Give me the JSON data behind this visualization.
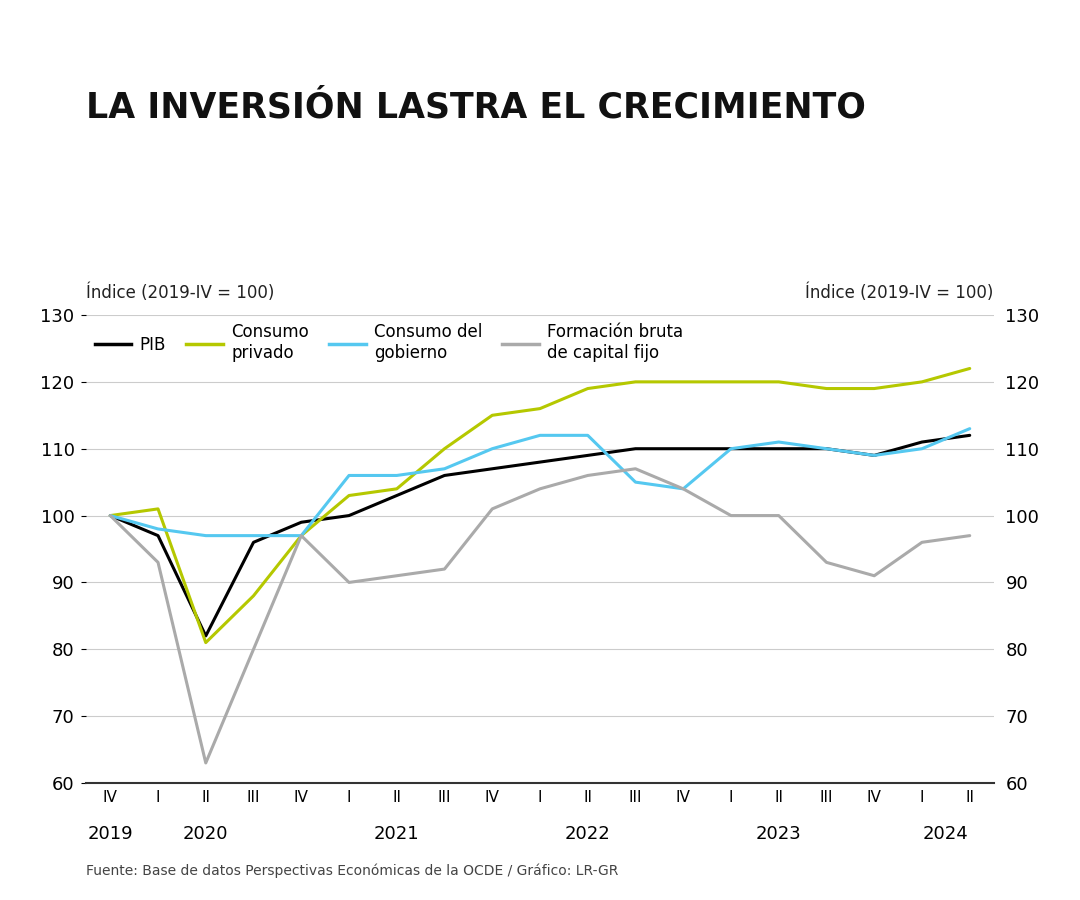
{
  "title": "LA INVERSIÓN LASTRA EL CRECIMIENTO",
  "ylabel_left": "Índice (2019-IV = 100)",
  "ylabel_right": "Índice (2019-IV = 100)",
  "source": "Fuente: Base de datos Perspectivas Económicas de la OCDE / Gráfico: LR-GR",
  "ylim": [
    60,
    130
  ],
  "yticks": [
    60,
    70,
    80,
    90,
    100,
    110,
    120,
    130
  ],
  "x_labels": [
    "IV",
    "I",
    "II",
    "III",
    "IV",
    "I",
    "II",
    "III",
    "IV",
    "I",
    "II",
    "III",
    "IV",
    "I",
    "II",
    "III",
    "IV",
    "I",
    "II"
  ],
  "year_labels": [
    "2019",
    "2020",
    "2021",
    "2022",
    "2023",
    "2024"
  ],
  "year_x_centers": [
    0,
    2,
    6,
    10,
    14,
    17.5
  ],
  "series": {
    "PIB": {
      "color": "#000000",
      "linewidth": 2.2,
      "values": [
        100,
        97,
        82,
        96,
        99,
        100,
        103,
        106,
        107,
        108,
        109,
        110,
        110,
        110,
        110,
        110,
        109,
        111,
        112
      ]
    },
    "Consumo\nprivado": {
      "color": "#b5c800",
      "linewidth": 2.2,
      "values": [
        100,
        101,
        81,
        88,
        97,
        103,
        104,
        110,
        115,
        116,
        119,
        120,
        120,
        120,
        120,
        119,
        119,
        120,
        122
      ]
    },
    "Consumo del\ngobierno": {
      "color": "#55c8f0",
      "linewidth": 2.2,
      "values": [
        100,
        98,
        97,
        97,
        97,
        106,
        106,
        107,
        110,
        112,
        112,
        105,
        104,
        110,
        111,
        110,
        109,
        110,
        113
      ]
    },
    "Formación bruta\nde capital fijo": {
      "color": "#aaaaaa",
      "linewidth": 2.2,
      "values": [
        100,
        93,
        63,
        80,
        97,
        90,
        91,
        92,
        101,
        104,
        106,
        107,
        104,
        100,
        100,
        93,
        91,
        96,
        97
      ]
    }
  },
  "background_color": "#ffffff",
  "grid_color": "#cccccc",
  "title_bar_color": "#2b2b2b",
  "lr_box_color": "#cc2200"
}
